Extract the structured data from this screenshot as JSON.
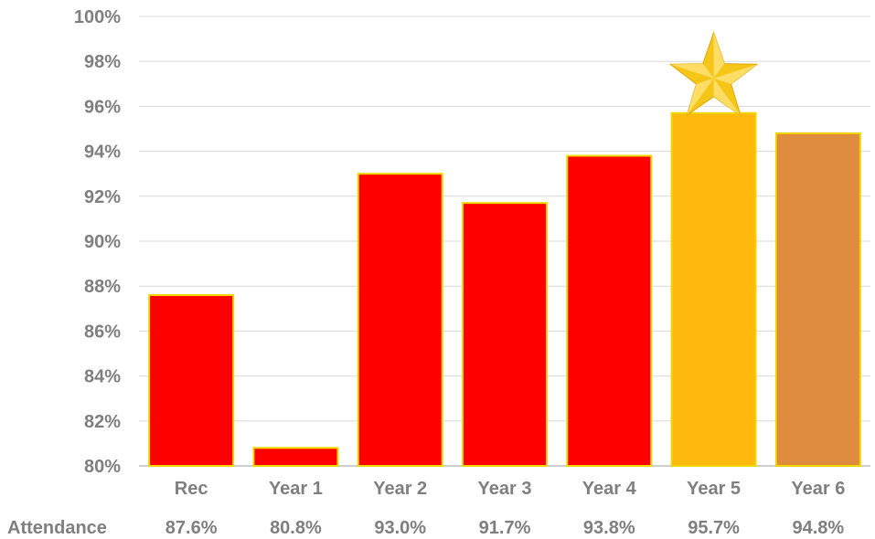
{
  "chart_data": {
    "type": "bar",
    "categories": [
      "Rec",
      "Year 1",
      "Year 2",
      "Year 3",
      "Year 4",
      "Year 5",
      "Year 6"
    ],
    "values": [
      87.6,
      80.8,
      93.0,
      91.7,
      93.8,
      95.7,
      94.8
    ],
    "value_labels": [
      "87.6%",
      "80.8%",
      "93.0%",
      "91.7%",
      "93.8%",
      "95.7%",
      "94.8%"
    ],
    "bar_colors": [
      "#ff0000",
      "#ff0000",
      "#ff0000",
      "#ff0000",
      "#ff0000",
      "#ffb80e",
      "#e08c3e"
    ],
    "bar_outline": "#f2d600",
    "ylim": [
      80,
      100
    ],
    "yticks": [
      80,
      82,
      84,
      86,
      88,
      90,
      92,
      94,
      96,
      98,
      100
    ],
    "ytick_labels": [
      "80%",
      "82%",
      "84%",
      "86%",
      "88%",
      "90%",
      "92%",
      "94%",
      "96%",
      "98%",
      "100%"
    ],
    "grid": true,
    "table_row_label": "Attendance",
    "highlight": {
      "category": "Year 5",
      "icon": "star-icon",
      "color": "#f5c518"
    }
  }
}
